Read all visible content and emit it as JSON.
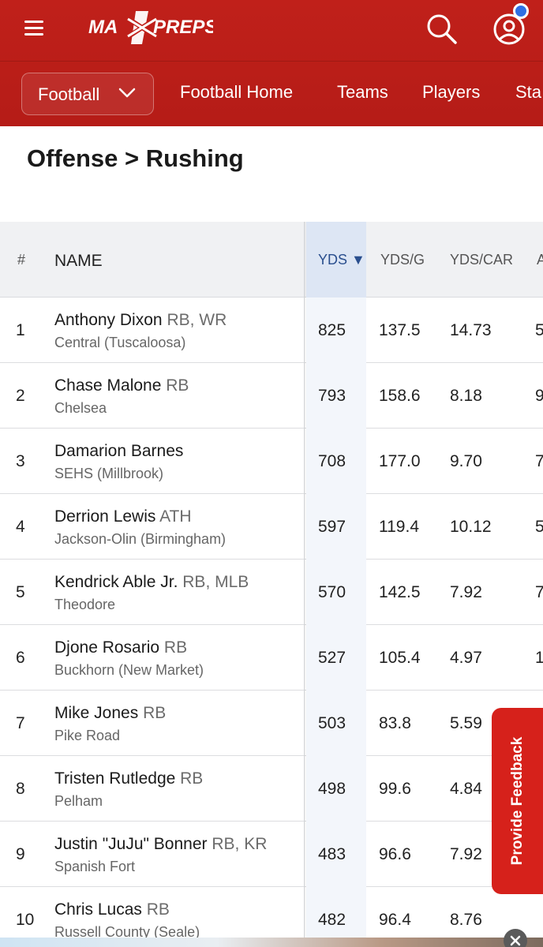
{
  "header": {
    "logo_text": "MAXPREPS",
    "brand_color": "#c0201a",
    "notification_color": "#2f6fe4"
  },
  "nav": {
    "sport_select": "Football",
    "links": [
      "Football Home",
      "Teams",
      "Players",
      "Sta"
    ]
  },
  "page": {
    "title": "Offense > Rushing"
  },
  "table": {
    "columns": {
      "rank": "#",
      "name": "NAME",
      "yds": "YDS ▼",
      "yds_per_game": "YDS/G",
      "yds_per_carry": "YDS/CAR",
      "cut": "A"
    },
    "sorted_column": "YDS",
    "rows": [
      {
        "rank": "1",
        "name": "Anthony Dixon",
        "pos": "RB, WR",
        "school": "Central (Tuscaloosa)",
        "yds": "825",
        "ydsg": "137.5",
        "ydscar": "14.73",
        "cut": "5"
      },
      {
        "rank": "2",
        "name": "Chase Malone",
        "pos": "RB",
        "school": "Chelsea",
        "yds": "793",
        "ydsg": "158.6",
        "ydscar": "8.18",
        "cut": "9"
      },
      {
        "rank": "3",
        "name": "Damarion Barnes",
        "pos": "",
        "school": "SEHS (Millbrook)",
        "yds": "708",
        "ydsg": "177.0",
        "ydscar": "9.70",
        "cut": "7"
      },
      {
        "rank": "4",
        "name": "Derrion Lewis",
        "pos": "ATH",
        "school": "Jackson-Olin (Birmingham)",
        "yds": "597",
        "ydsg": "119.4",
        "ydscar": "10.12",
        "cut": "5"
      },
      {
        "rank": "5",
        "name": "Kendrick Able Jr.",
        "pos": "RB, MLB",
        "school": "Theodore",
        "yds": "570",
        "ydsg": "142.5",
        "ydscar": "7.92",
        "cut": "7"
      },
      {
        "rank": "6",
        "name": "Djone Rosario",
        "pos": "RB",
        "school": "Buckhorn (New Market)",
        "yds": "527",
        "ydsg": "105.4",
        "ydscar": "4.97",
        "cut": "1"
      },
      {
        "rank": "7",
        "name": "Mike Jones",
        "pos": "RB",
        "school": "Pike Road",
        "yds": "503",
        "ydsg": "83.8",
        "ydscar": "5.59",
        "cut": ""
      },
      {
        "rank": "8",
        "name": "Tristen Rutledge",
        "pos": "RB",
        "school": "Pelham",
        "yds": "498",
        "ydsg": "99.6",
        "ydscar": "4.84",
        "cut": ""
      },
      {
        "rank": "9",
        "name": "Justin \"JuJu\" Bonner",
        "pos": "RB, KR",
        "school": "Spanish Fort",
        "yds": "483",
        "ydsg": "96.6",
        "ydscar": "7.92",
        "cut": ""
      },
      {
        "rank": "10",
        "name": "Chris Lucas",
        "pos": "RB",
        "school": "Russell County (Seale)",
        "yds": "482",
        "ydsg": "96.4",
        "ydscar": "8.76",
        "cut": ""
      }
    ]
  },
  "feedback": {
    "label": "Provide Feedback"
  }
}
